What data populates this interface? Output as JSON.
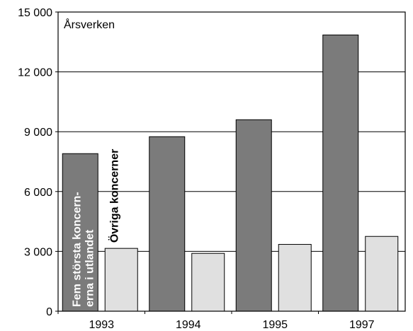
{
  "chart_data": {
    "type": "bar",
    "annotation": "Årsverken",
    "categories": [
      "1993",
      "1994",
      "1995",
      "1997"
    ],
    "series": [
      {
        "name": "Fem största koncern-\nerna i utlandet",
        "color": "#7b7b7b",
        "values": [
          7900,
          8750,
          9600,
          13850
        ]
      },
      {
        "name": "Övriga koncerner",
        "color": "#e0e0e0",
        "values": [
          3150,
          2900,
          3350,
          3750
        ]
      }
    ],
    "ylim": [
      0,
      15000
    ],
    "yticks": [
      {
        "value": 0,
        "label": "0"
      },
      {
        "value": 3000,
        "label": "3 000"
      },
      {
        "value": 6000,
        "label": "6 000"
      },
      {
        "value": 9000,
        "label": "9 000"
      },
      {
        "value": 12000,
        "label": "12 000"
      },
      {
        "value": 15000,
        "label": "15 000"
      }
    ],
    "grid": true
  }
}
